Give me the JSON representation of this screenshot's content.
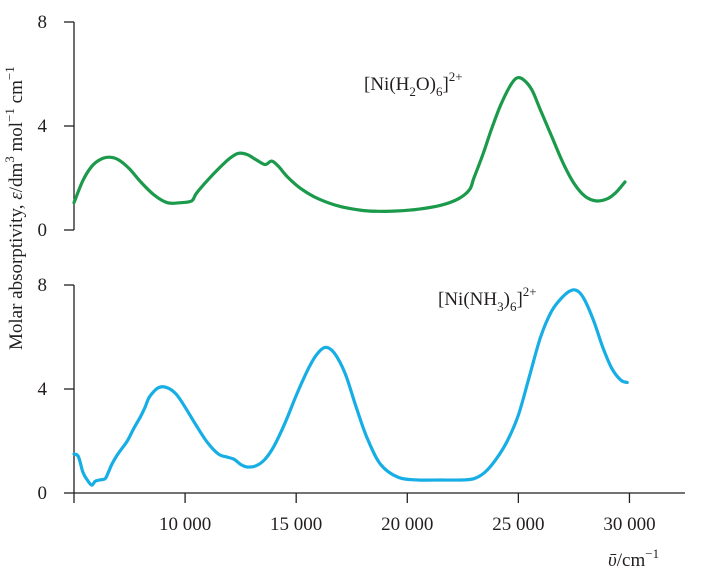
{
  "chart_data": {
    "type": "line",
    "ylabel_parts": {
      "pre": "Molar absorptivity, ",
      "epsilon": "ε",
      "mid": "/dm",
      "mid_sup": "3",
      "mid2": " mol",
      "mid2_sup": "−1",
      "post": " cm",
      "post_sup": "−1"
    },
    "xlabel_parts": {
      "nu": "ῡ",
      "unit": "/cm",
      "unit_sup": "−1"
    },
    "xlim": [
      5000,
      32500
    ],
    "x_ticks": [
      5000,
      10000,
      15000,
      20000,
      25000,
      30000
    ],
    "x_tick_labels": [
      "",
      "10 000",
      "15 000",
      "20 000",
      "25 000",
      "30 000"
    ],
    "panels": [
      {
        "ylim": [
          0,
          8
        ],
        "y_ticks": [
          0,
          4,
          8
        ],
        "y_tick_labels": [
          "0",
          "4",
          "8"
        ],
        "series": {
          "name_parts": {
            "a": "[Ni(H",
            "b": "2",
            "c": "O)",
            "d": "6",
            "e": "]",
            "f": "2+"
          },
          "color": "#1a9a4a",
          "x": [
            5000,
            5400,
            5800,
            6200,
            6600,
            7000,
            7500,
            8000,
            8600,
            9200,
            9800,
            10300,
            10500,
            11000,
            11500,
            12000,
            12400,
            12800,
            13200,
            13600,
            13900,
            14200,
            14600,
            15200,
            16000,
            17000,
            18000,
            18700,
            19500,
            20500,
            21500,
            22300,
            22800,
            23000,
            23400,
            23800,
            24200,
            24600,
            24900,
            25200,
            25600,
            26000,
            26500,
            27000,
            27500,
            28000,
            28500,
            29000,
            29400,
            29800
          ],
          "y": [
            1.05,
            1.9,
            2.45,
            2.72,
            2.8,
            2.7,
            2.35,
            1.85,
            1.35,
            1.05,
            1.05,
            1.12,
            1.4,
            1.9,
            2.35,
            2.75,
            2.95,
            2.9,
            2.7,
            2.52,
            2.65,
            2.45,
            2.05,
            1.6,
            1.2,
            0.9,
            0.75,
            0.72,
            0.73,
            0.8,
            0.95,
            1.2,
            1.55,
            2.0,
            2.9,
            3.9,
            4.8,
            5.5,
            5.83,
            5.8,
            5.4,
            4.6,
            3.6,
            2.6,
            1.8,
            1.3,
            1.12,
            1.2,
            1.45,
            1.85
          ]
        }
      },
      {
        "ylim": [
          0,
          8
        ],
        "y_ticks": [
          0,
          4,
          8
        ],
        "y_tick_labels": [
          "0",
          "4",
          "8"
        ],
        "series": {
          "name_parts": {
            "a": "[Ni(NH",
            "b": "3",
            "c": ")",
            "d": "6",
            "e": "]",
            "f": "2+"
          },
          "color": "#16aee4",
          "x": [
            5000,
            5200,
            5400,
            5600,
            5800,
            5950,
            6150,
            6400,
            6550,
            6700,
            6900,
            7100,
            7400,
            7700,
            8000,
            8200,
            8400,
            8800,
            9200,
            9600,
            10000,
            10500,
            11000,
            11500,
            11900,
            12200,
            12500,
            12800,
            13200,
            13600,
            14000,
            14500,
            15000,
            15500,
            15900,
            16300,
            16700,
            17200,
            17700,
            18200,
            18800,
            19600,
            20500,
            21500,
            22400,
            23000,
            23500,
            24000,
            24500,
            25000,
            25500,
            26000,
            26500,
            27000,
            27400,
            27700,
            28000,
            28400,
            28800,
            29200,
            29600,
            29900
          ],
          "y": [
            1.5,
            1.4,
            0.8,
            0.5,
            0.3,
            0.45,
            0.5,
            0.55,
            0.8,
            1.1,
            1.4,
            1.65,
            2.0,
            2.5,
            2.95,
            3.3,
            3.7,
            4.05,
            4.05,
            3.8,
            3.3,
            2.6,
            1.95,
            1.5,
            1.38,
            1.3,
            1.1,
            1.0,
            1.05,
            1.3,
            1.8,
            2.7,
            3.75,
            4.7,
            5.3,
            5.6,
            5.4,
            4.6,
            3.3,
            2.1,
            1.1,
            0.6,
            0.5,
            0.5,
            0.5,
            0.55,
            0.8,
            1.3,
            2.0,
            3.0,
            4.5,
            6.0,
            7.0,
            7.55,
            7.8,
            7.75,
            7.4,
            6.6,
            5.6,
            4.8,
            4.35,
            4.25
          ]
        }
      }
    ]
  }
}
